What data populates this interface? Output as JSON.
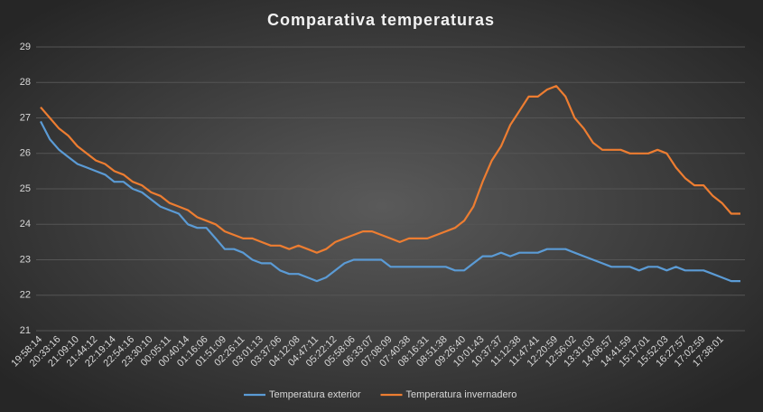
{
  "chart_data": {
    "type": "line",
    "title": "Comparativa  temperaturas",
    "categories": [
      "19:58:14",
      null,
      "20:33:16",
      null,
      "21:09:10",
      null,
      "21:44:12",
      null,
      "22:19:14",
      null,
      "22:54:16",
      null,
      "23:30:10",
      null,
      "00:05:11",
      null,
      "00:40:14",
      null,
      "01:16:06",
      null,
      "01:51:09",
      null,
      "02:26:11",
      null,
      "03:01:13",
      null,
      "03:37:06",
      null,
      "04:12:08",
      null,
      "04:47:11",
      null,
      "05:22:12",
      null,
      "05:58:06",
      null,
      "06:33:07",
      null,
      "07:08:09",
      null,
      "07:40:38",
      null,
      "08:16:31",
      null,
      "08:51:38",
      null,
      "09:26:40",
      null,
      "10:01:43",
      null,
      "10:37:37",
      null,
      "11:12:38",
      null,
      "11:47:41",
      null,
      "12:20:59",
      null,
      "12:56:02",
      null,
      "13:31:03",
      null,
      "14:06:57",
      null,
      "14:41:59",
      null,
      "15:17:01",
      null,
      "15:52:03",
      null,
      "16:27:57",
      null,
      "17:02:59",
      null,
      "17:38:01",
      null,
      null
    ],
    "series": [
      {
        "name": "Temperatura exterior",
        "color": "#5b9bd5",
        "values": [
          26.9,
          26.4,
          26.1,
          25.9,
          25.7,
          25.6,
          25.5,
          25.4,
          25.2,
          25.2,
          25.0,
          24.9,
          24.7,
          24.5,
          24.4,
          24.3,
          24.0,
          23.9,
          23.9,
          23.6,
          23.3,
          23.3,
          23.2,
          23.0,
          22.9,
          22.9,
          22.7,
          22.6,
          22.6,
          22.5,
          22.4,
          22.5,
          22.7,
          22.9,
          23.0,
          23.0,
          23.0,
          23.0,
          22.8,
          22.8,
          22.8,
          22.8,
          22.8,
          22.8,
          22.8,
          22.7,
          22.7,
          22.9,
          23.1,
          23.1,
          23.2,
          23.1,
          23.2,
          23.2,
          23.2,
          23.3,
          23.3,
          23.3,
          23.2,
          23.1,
          23.0,
          22.9,
          22.8,
          22.8,
          22.8,
          22.7,
          22.8,
          22.8,
          22.7,
          22.8,
          22.7,
          22.7,
          22.7,
          22.6,
          22.5,
          22.4,
          22.4
        ]
      },
      {
        "name": "Temperatura invernadero",
        "color": "#ed7d31",
        "values": [
          27.3,
          27.0,
          26.7,
          26.5,
          26.2,
          26.0,
          25.8,
          25.7,
          25.5,
          25.4,
          25.2,
          25.1,
          24.9,
          24.8,
          24.6,
          24.5,
          24.4,
          24.2,
          24.1,
          24.0,
          23.8,
          23.7,
          23.6,
          23.6,
          23.5,
          23.4,
          23.4,
          23.3,
          23.4,
          23.3,
          23.2,
          23.3,
          23.5,
          23.6,
          23.7,
          23.8,
          23.8,
          23.7,
          23.6,
          23.5,
          23.6,
          23.6,
          23.6,
          23.7,
          23.8,
          23.9,
          24.1,
          24.5,
          25.2,
          25.8,
          26.2,
          26.8,
          27.2,
          27.6,
          27.6,
          27.8,
          27.9,
          27.6,
          27.0,
          26.7,
          26.3,
          26.1,
          26.1,
          26.1,
          26.0,
          26.0,
          26.0,
          26.1,
          26.0,
          25.6,
          25.3,
          25.1,
          25.1,
          24.8,
          24.6,
          24.3,
          24.3
        ]
      }
    ],
    "ylim": [
      21,
      29
    ],
    "yticks": [
      21,
      22,
      23,
      24,
      25,
      26,
      27,
      28,
      29
    ],
    "grid": true,
    "legend": "bottom"
  }
}
